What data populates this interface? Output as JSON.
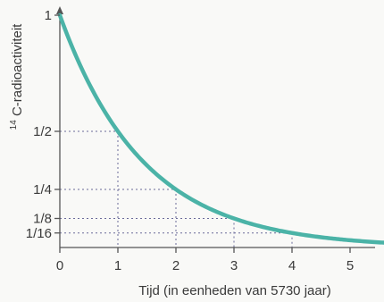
{
  "chart_data": {
    "type": "line",
    "ylabel_sup": "14",
    "ylabel_main": "C-radioactiviteit",
    "xlabel": "Tijd (in eenheden van 5730 jaar)",
    "x_ticks": [
      {
        "value": 0,
        "label": "0"
      },
      {
        "value": 1,
        "label": "1"
      },
      {
        "value": 2,
        "label": "2"
      },
      {
        "value": 3,
        "label": "3"
      },
      {
        "value": 4,
        "label": "4"
      },
      {
        "value": 5,
        "label": "5"
      }
    ],
    "y_ticks": [
      {
        "value": 1,
        "label": "1"
      },
      {
        "value": 0.5,
        "label": "1/2"
      },
      {
        "value": 0.25,
        "label": "1/4"
      },
      {
        "value": 0.125,
        "label": "1/8"
      },
      {
        "value": 0.0625,
        "label": "1/16"
      }
    ],
    "guides": [
      {
        "x": 1,
        "y": 0.5
      },
      {
        "x": 2,
        "y": 0.25
      },
      {
        "x": 3,
        "y": 0.125
      },
      {
        "x": 4,
        "y": 0.0625
      }
    ],
    "series": [
      {
        "x": [
          0,
          0.25,
          0.5,
          0.75,
          1,
          1.25,
          1.5,
          1.75,
          2,
          2.25,
          2.5,
          2.75,
          3,
          3.25,
          3.5,
          3.75,
          4,
          4.25,
          4.5,
          4.75,
          5,
          5.25,
          5.5,
          5.75
        ],
        "y": [
          1,
          0.8409,
          0.7071,
          0.5946,
          0.5,
          0.4204,
          0.3536,
          0.2973,
          0.25,
          0.2102,
          0.1768,
          0.1487,
          0.125,
          0.1051,
          0.0884,
          0.0743,
          0.0625,
          0.0526,
          0.0442,
          0.0372,
          0.03125,
          0.0263,
          0.0221,
          0.0186
        ],
        "color": "#4bb3a7"
      }
    ],
    "xlim": [
      0,
      5.75
    ],
    "ylim": [
      0,
      1
    ],
    "axis_color": "#555555",
    "guide_color": "#6a6a9a",
    "grid": false
  }
}
